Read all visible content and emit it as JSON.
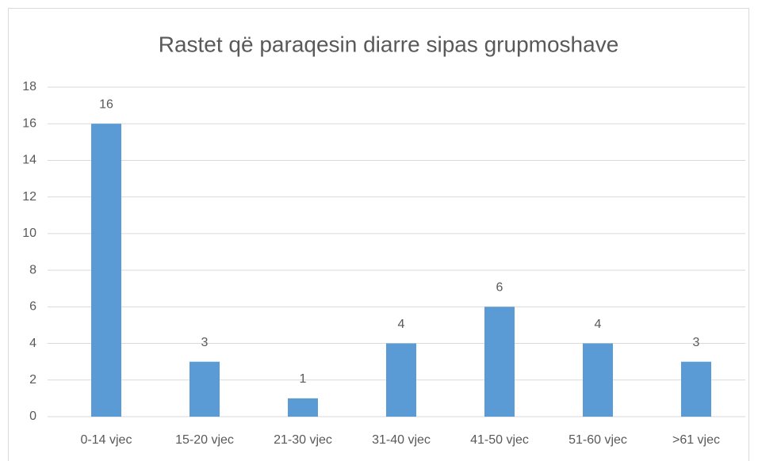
{
  "chart_data": {
    "type": "bar",
    "title": "Rastet që paraqesin diarre sipas grupmoshave",
    "categories": [
      "0-14 vjec",
      "15-20 vjec",
      "21-30 vjec",
      "31-40 vjec",
      "41-50 vjec",
      "51-60 vjec",
      ">61 vjec"
    ],
    "values": [
      16,
      3,
      1,
      4,
      6,
      4,
      3
    ],
    "color": "#5b9bd5",
    "ylim": [
      0,
      18
    ],
    "yticks": [
      0,
      2,
      4,
      6,
      8,
      10,
      12,
      14,
      16,
      18
    ],
    "grid": true
  }
}
